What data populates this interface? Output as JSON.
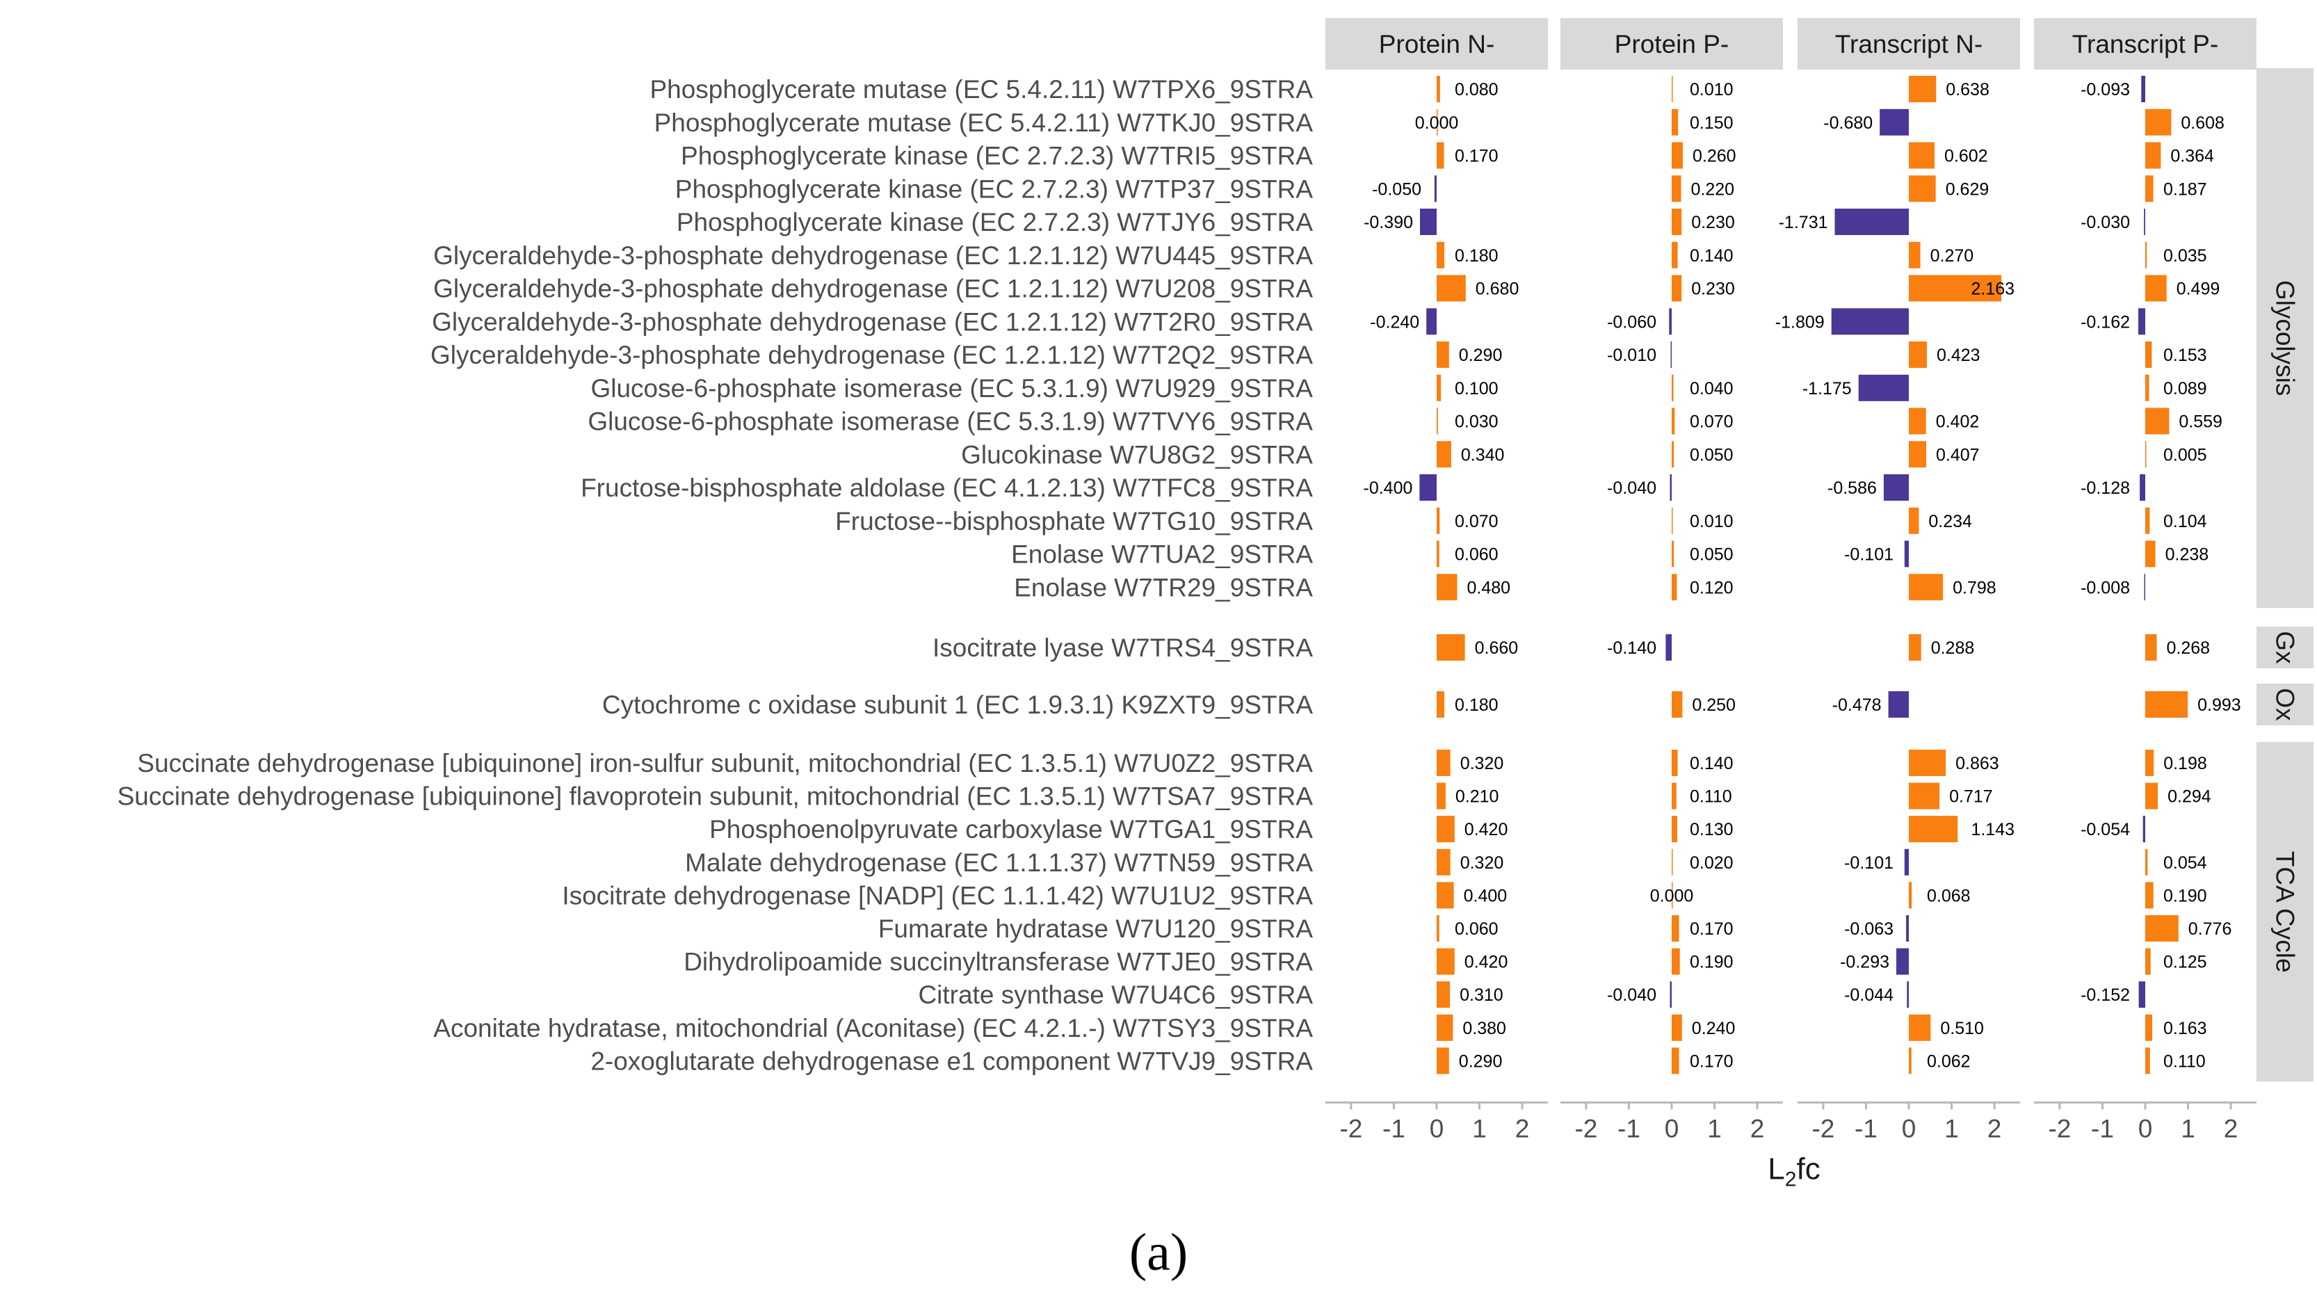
{
  "caption_label": "(a)",
  "chart_data": {
    "type": "bar",
    "orientation": "horizontal",
    "xlabel": "L2fc",
    "xlabel_main": "L",
    "xlabel_sub": "2",
    "xlabel_tail": "fc",
    "xlim": [
      -2.6,
      2.6
    ],
    "xticks": [
      "-2",
      "-1",
      "0",
      "1",
      "2"
    ],
    "colors": {
      "positive": "#f97f10",
      "negative": "#4b3796",
      "strip": "#d9d9d9",
      "axis": "#b8b8b8",
      "label": "#4d4d4d",
      "value": "#000000"
    },
    "panels": [
      "Protein N-",
      "Protein P-",
      "Transcript N-",
      "Transcript P-"
    ],
    "groups": [
      {
        "name": "Glycolysis",
        "start": 0,
        "end": 15
      },
      {
        "name": "Gx",
        "start": 16,
        "end": 16
      },
      {
        "name": "Ox",
        "start": 17,
        "end": 17
      },
      {
        "name": "TCA Cycle",
        "start": 18,
        "end": 27
      }
    ],
    "categories": [
      "Phosphoglycerate mutase (EC 5.4.2.11) W7TPX6_9STRA",
      "Phosphoglycerate mutase (EC 5.4.2.11) W7TKJ0_9STRA",
      "Phosphoglycerate kinase (EC 2.7.2.3) W7TRI5_9STRA",
      "Phosphoglycerate kinase (EC 2.7.2.3) W7TP37_9STRA",
      "Phosphoglycerate kinase (EC 2.7.2.3) W7TJY6_9STRA",
      "Glyceraldehyde-3-phosphate dehydrogenase (EC 1.2.1.12) W7U445_9STRA",
      "Glyceraldehyde-3-phosphate dehydrogenase (EC 1.2.1.12) W7U208_9STRA",
      "Glyceraldehyde-3-phosphate dehydrogenase (EC 1.2.1.12) W7T2R0_9STRA",
      "Glyceraldehyde-3-phosphate dehydrogenase (EC 1.2.1.12) W7T2Q2_9STRA",
      "Glucose-6-phosphate isomerase (EC 5.3.1.9) W7U929_9STRA",
      "Glucose-6-phosphate isomerase (EC 5.3.1.9) W7TVY6_9STRA",
      "Glucokinase W7U8G2_9STRA",
      "Fructose-bisphosphate aldolase (EC 4.1.2.13) W7TFC8_9STRA",
      "Fructose--bisphosphate W7TG10_9STRA",
      "Enolase W7TUA2_9STRA",
      "Enolase W7TR29_9STRA",
      "Isocitrate lyase W7TRS4_9STRA",
      "Cytochrome c oxidase subunit 1 (EC 1.9.3.1) K9ZXT9_9STRA",
      "Succinate dehydrogenase [ubiquinone] iron-sulfur subunit, mitochondrial (EC 1.3.5.1) W7U0Z2_9STRA",
      "Succinate dehydrogenase [ubiquinone] flavoprotein subunit, mitochondrial (EC 1.3.5.1) W7TSA7_9STRA",
      "Phosphoenolpyruvate carboxylase W7TGA1_9STRA",
      "Malate dehydrogenase (EC 1.1.1.37) W7TN59_9STRA",
      "Isocitrate dehydrogenase [NADP] (EC 1.1.1.42) W7U1U2_9STRA",
      "Fumarate hydratase W7U120_9STRA",
      "Dihydrolipoamide succinyltransferase W7TJE0_9STRA",
      "Citrate synthase W7U4C6_9STRA",
      "Aconitate hydratase, mitochondrial (Aconitase) (EC 4.2.1.-) W7TSY3_9STRA",
      "2-oxoglutarate dehydrogenase e1 component W7TVJ9_9STRA"
    ],
    "series": [
      {
        "name": "Protein N-",
        "values": [
          0.08,
          0.0,
          0.17,
          -0.05,
          -0.39,
          0.18,
          0.68,
          -0.24,
          0.29,
          0.1,
          0.03,
          0.34,
          -0.4,
          0.07,
          0.06,
          0.48,
          0.66,
          0.18,
          0.32,
          0.21,
          0.42,
          0.32,
          0.4,
          0.06,
          0.42,
          0.31,
          0.38,
          0.29
        ],
        "labels": [
          "0.080",
          "0.000",
          "0.170",
          "-0.050",
          "-0.390",
          "0.180",
          "0.680",
          "-0.240",
          "0.290",
          "0.100",
          "0.030",
          "0.340",
          "-0.400",
          "0.070",
          "0.060",
          "0.480",
          "0.660",
          "0.180",
          "0.320",
          "0.210",
          "0.420",
          "0.320",
          "0.400",
          "0.060",
          "0.420",
          "0.310",
          "0.380",
          "0.290"
        ]
      },
      {
        "name": "Protein P-",
        "values": [
          0.01,
          0.15,
          0.26,
          0.22,
          0.23,
          0.14,
          0.23,
          -0.06,
          -0.01,
          0.04,
          0.07,
          0.05,
          -0.04,
          0.01,
          0.05,
          0.12,
          -0.14,
          0.25,
          0.14,
          0.11,
          0.13,
          0.02,
          0.0,
          0.17,
          0.19,
          -0.04,
          0.24,
          0.17
        ],
        "labels": [
          "0.010",
          "0.150",
          "0.260",
          "0.220",
          "0.230",
          "0.140",
          "0.230",
          "-0.060",
          "-0.010",
          "0.040",
          "0.070",
          "0.050",
          "-0.040",
          "0.010",
          "0.050",
          "0.120",
          "-0.140",
          "0.250",
          "0.140",
          "0.110",
          "0.130",
          "0.020",
          "0.000",
          "0.170",
          "0.190",
          "-0.040",
          "0.240",
          "0.170"
        ]
      },
      {
        "name": "Transcript N-",
        "values": [
          0.638,
          -0.68,
          0.602,
          0.629,
          -1.731,
          0.27,
          2.163,
          -1.809,
          0.423,
          -1.175,
          0.402,
          0.407,
          -0.586,
          0.234,
          -0.101,
          0.798,
          0.288,
          -0.478,
          0.863,
          0.717,
          1.143,
          -0.101,
          0.068,
          -0.063,
          -0.293,
          -0.044,
          0.51,
          0.062
        ],
        "labels": [
          "0.638",
          "-0.680",
          "0.602",
          "0.629",
          "-1.731",
          "0.270",
          "2.163",
          "-1.809",
          "0.423",
          "-1.175",
          "0.402",
          "0.407",
          "-0.586",
          "0.234",
          "-0.101",
          "0.798",
          "0.288",
          "-0.478",
          "0.863",
          "0.717",
          "1.143",
          "-0.101",
          "0.068",
          "-0.063",
          "-0.293",
          "-0.044",
          "0.510",
          "0.062"
        ]
      },
      {
        "name": "Transcript P-",
        "values": [
          -0.093,
          0.608,
          0.364,
          0.187,
          -0.03,
          0.035,
          0.499,
          -0.162,
          0.153,
          0.089,
          0.559,
          0.005,
          -0.128,
          0.104,
          0.238,
          -0.008,
          0.268,
          0.993,
          0.198,
          0.294,
          -0.054,
          0.054,
          0.19,
          0.776,
          0.125,
          -0.152,
          0.163,
          0.11
        ],
        "labels": [
          "-0.093",
          "0.608",
          "0.364",
          "0.187",
          "-0.030",
          "0.035",
          "0.499",
          "-0.162",
          "0.153",
          "0.089",
          "0.559",
          "0.005",
          "-0.128",
          "0.104",
          "0.238",
          "-0.008",
          "0.268",
          "0.993",
          "0.198",
          "0.294",
          "-0.054",
          "0.054",
          "0.190",
          "0.776",
          "0.125",
          "-0.152",
          "0.163",
          "0.110"
        ]
      }
    ]
  }
}
